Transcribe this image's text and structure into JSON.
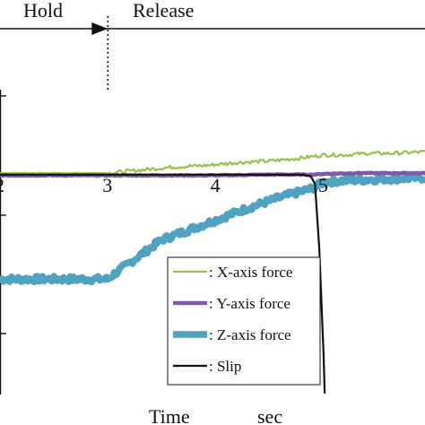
{
  "chart_data": {
    "type": "line",
    "phases": [
      {
        "label": "Hold",
        "x_start": 1.0,
        "x_end": 3.0
      },
      {
        "label": "Release",
        "x_start": 3.0,
        "x_end": 6.0
      }
    ],
    "x_axis": {
      "label_left": "Time",
      "label_right": "sec",
      "ticks": [
        "2",
        "3",
        "4",
        "5"
      ],
      "tick_values": [
        2,
        3,
        4,
        5
      ],
      "range": [
        2.0,
        5.94
      ]
    },
    "y_range": [
      -0.45,
      1.48
    ],
    "legend": [
      {
        "series": 0,
        "label": ": X-axis force"
      },
      {
        "series": 1,
        "label": ": Y-axis force"
      },
      {
        "series": 2,
        "label": ": Z-axis force"
      },
      {
        "series": 3,
        "label": ": Slip"
      }
    ],
    "series": [
      {
        "color": "#9bc04a",
        "stroke": 2.2,
        "x": [
          2.0,
          3.0,
          3.3,
          3.6,
          3.9,
          4.2,
          4.5,
          4.8,
          5.0,
          5.2,
          5.4,
          5.6,
          5.94
        ],
        "y": [
          1.0,
          1.0,
          1.02,
          1.04,
          1.05,
          1.07,
          1.08,
          1.1,
          1.12,
          1.12,
          1.13,
          1.13,
          1.14
        ]
      },
      {
        "color": "#7d5aa6",
        "stroke": 4.5,
        "x": [
          2.0,
          3.0,
          3.5,
          4.0,
          4.5,
          4.9,
          5.0,
          5.3,
          5.94
        ],
        "y": [
          0.985,
          0.985,
          0.985,
          0.985,
          0.99,
          0.99,
          0.995,
          1.0,
          1.0
        ]
      },
      {
        "color": "#4fa3c0",
        "stroke": 7.5,
        "x": [
          2.0,
          2.5,
          3.0,
          3.05,
          3.5,
          4.0,
          4.3,
          4.6,
          4.9,
          5.0,
          5.15,
          5.5,
          5.94
        ],
        "y": [
          0.3,
          0.3,
          0.3,
          0.33,
          0.56,
          0.69,
          0.77,
          0.84,
          0.9,
          0.94,
          0.95,
          0.96,
          0.97
        ]
      },
      {
        "color": "#111111",
        "stroke": 2.2,
        "x": [
          2.0,
          3.0,
          4.0,
          4.8,
          4.88,
          4.92,
          4.96,
          5.0,
          5.01
        ],
        "y": [
          0.99,
          0.99,
          0.99,
          0.99,
          0.98,
          0.93,
          0.5,
          -0.2,
          -0.45
        ]
      }
    ]
  }
}
